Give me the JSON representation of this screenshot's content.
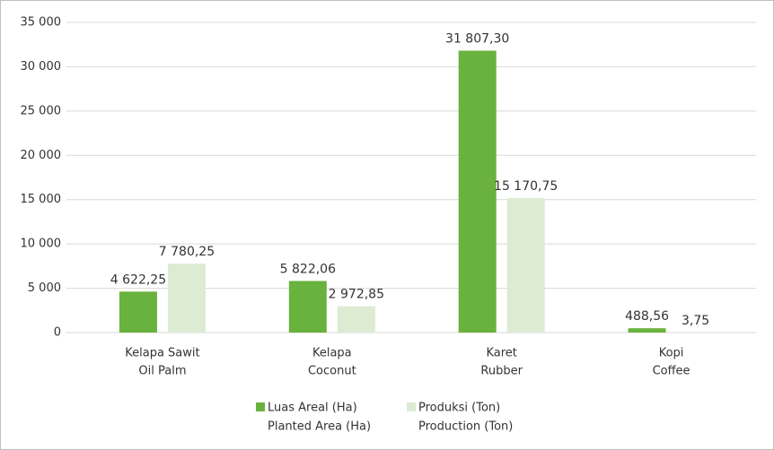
{
  "chart_data": {
    "type": "bar",
    "categories": [
      [
        "Kelapa Sawit",
        "Oil Palm"
      ],
      [
        "Kelapa",
        "Coconut"
      ],
      [
        "Karet",
        "Rubber"
      ],
      [
        "Kopi",
        "Coffee"
      ]
    ],
    "series": [
      {
        "name": [
          "Luas Areal (Ha)",
          "Planted Area (Ha)"
        ],
        "color": "#6ab23e",
        "values": [
          4622.25,
          5822.06,
          31807.3,
          488.56
        ],
        "value_labels": [
          "4 622,25",
          "5 822,06",
          "31 807,30",
          "488,56"
        ]
      },
      {
        "name": [
          "Produksi (Ton)",
          "Production (Ton)"
        ],
        "color": "#dcebd2",
        "values": [
          7780.25,
          2972.85,
          15170.75,
          3.75
        ],
        "value_labels": [
          "7 780,25",
          "2 972,85",
          "15 170,75",
          "3,75"
        ]
      }
    ],
    "ylim": [
      0,
      35000
    ],
    "yticks": [
      0,
      {
        "value": 5000,
        "label": "5 000"
      },
      {
        "value": 10000,
        "label": "10 000"
      },
      {
        "value": 15000,
        "label": "15 000"
      },
      {
        "value": 20000,
        "label": "20 000"
      },
      {
        "value": 25000,
        "label": "25 000"
      },
      {
        "value": 30000,
        "label": "30 000"
      },
      {
        "value": 35000,
        "label": "35 000"
      }
    ],
    "grid": true,
    "legend": "bottom"
  }
}
